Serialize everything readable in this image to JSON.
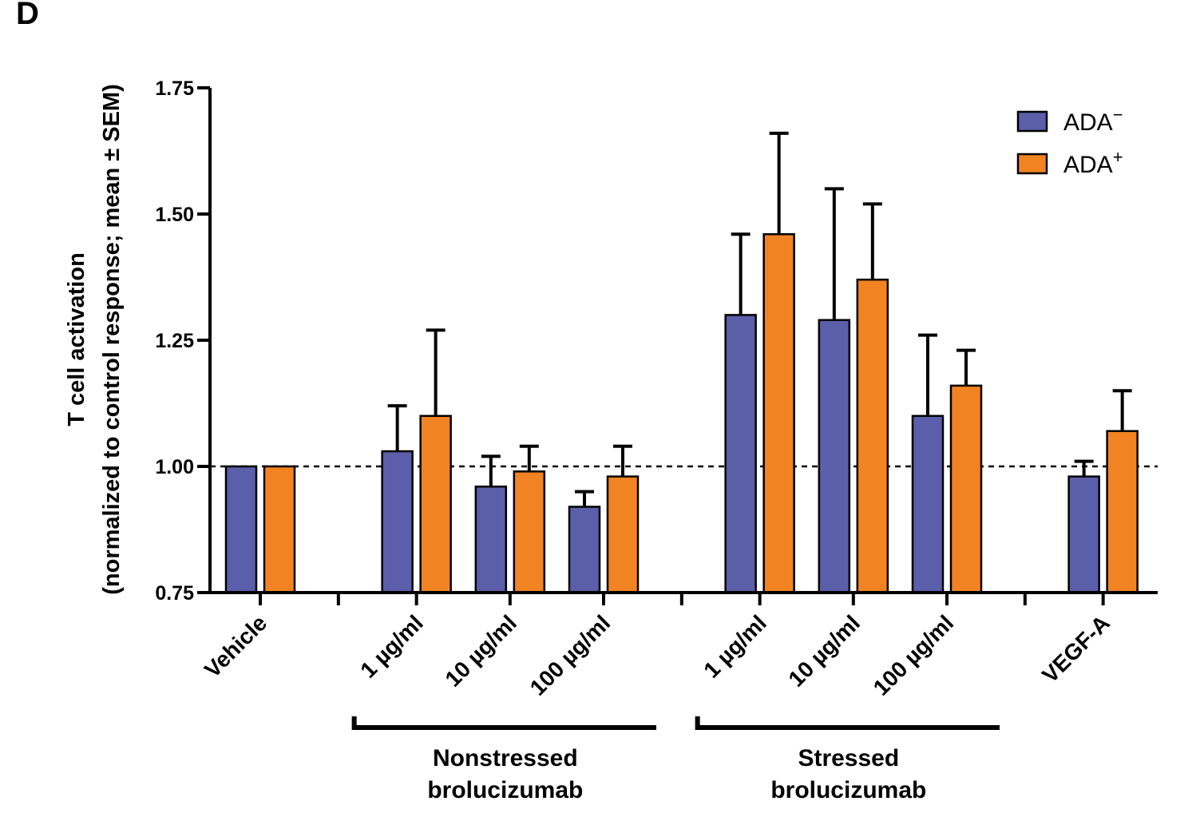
{
  "panel_label": "D",
  "colors": {
    "ada_neg": "#5b5ea8",
    "ada_pos": "#f28322"
  },
  "chart_data": {
    "type": "bar",
    "title": "",
    "ylabel_line1": "T cell activation",
    "ylabel_line2": "(normalized to control response; mean ± SEM)",
    "xlabel": "",
    "ylim": [
      0.75,
      1.75
    ],
    "yticks": [
      "0.75",
      "1.00",
      "1.25",
      "1.50",
      "1.75"
    ],
    "ytick_values": [
      0.75,
      1.0,
      1.25,
      1.5,
      1.75
    ],
    "reference_line": 1.0,
    "grid": false,
    "legend_position": "top-right",
    "categories": [
      "Vehicle",
      "1 µg/ml",
      "10 µg/ml",
      "100 µg/ml",
      "1 µg/ml",
      "10 µg/ml",
      "100 µg/ml",
      "VEGF-A"
    ],
    "category_slots": [
      0,
      1.82,
      2.91,
      4.0,
      5.82,
      6.91,
      8.0,
      9.82
    ],
    "groups": [
      {
        "label_line1": "Nonstressed",
        "label_line2": "brolucizumab",
        "categories": [
          1,
          2,
          3
        ]
      },
      {
        "label_line1": "Stressed",
        "label_line2": "brolucizumab",
        "categories": [
          4,
          5,
          6
        ]
      }
    ],
    "series": [
      {
        "legend_text": "ADA",
        "legend_sup": "−",
        "color_key": "ada_neg",
        "values": [
          1.0,
          1.03,
          0.96,
          0.92,
          1.3,
          1.29,
          1.1,
          0.98
        ],
        "errors": [
          0.0,
          0.09,
          0.06,
          0.03,
          0.16,
          0.26,
          0.16,
          0.03
        ]
      },
      {
        "legend_text": "ADA",
        "legend_sup": "+",
        "color_key": "ada_pos",
        "values": [
          1.0,
          1.1,
          0.99,
          0.98,
          1.46,
          1.37,
          1.16,
          1.07
        ],
        "errors": [
          0.0,
          0.17,
          0.05,
          0.06,
          0.2,
          0.15,
          0.07,
          0.08
        ]
      }
    ]
  }
}
